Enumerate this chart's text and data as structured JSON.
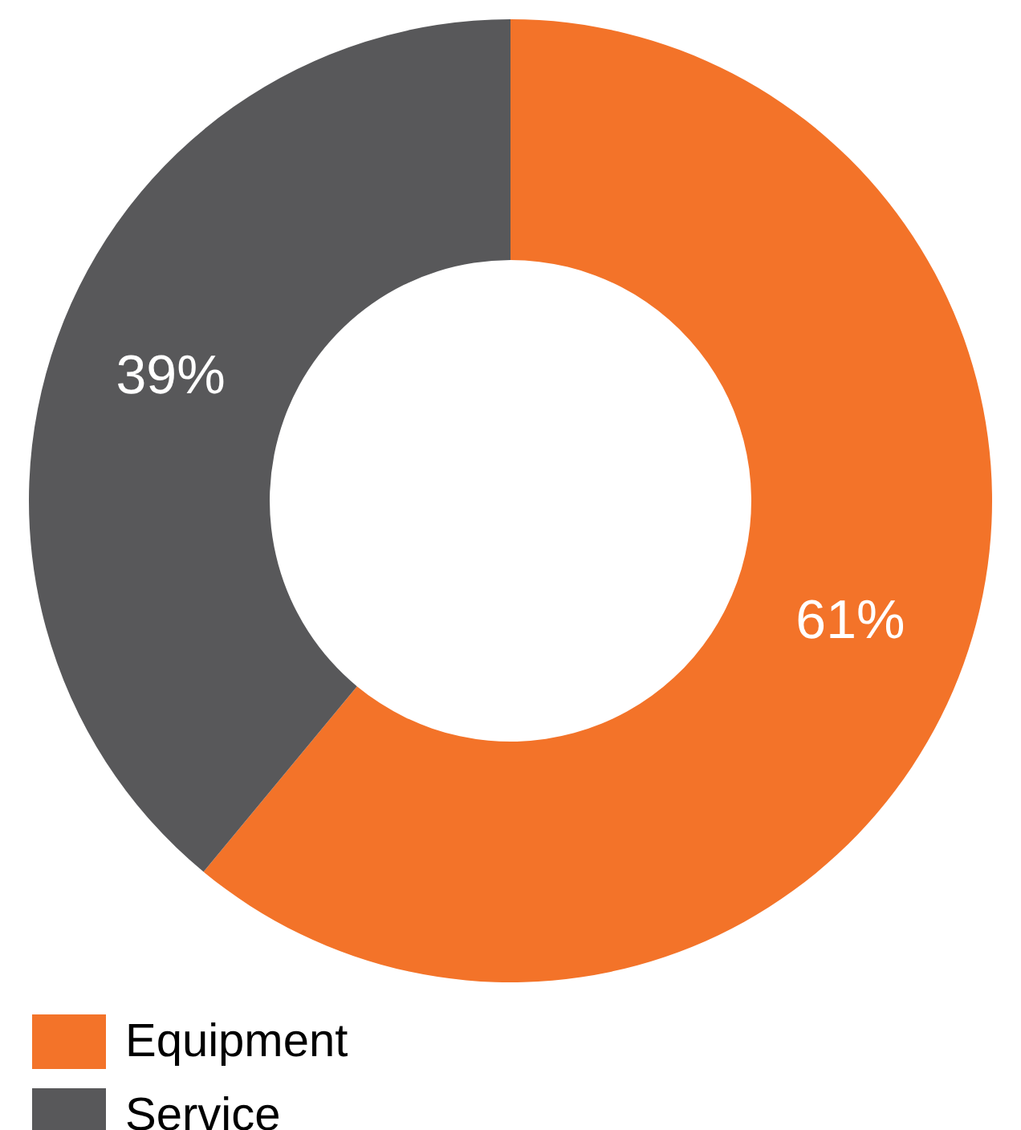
{
  "chart_data": {
    "type": "donut",
    "categories": [
      "Equipment",
      "Service"
    ],
    "values": [
      61,
      39
    ],
    "colors": [
      "#f37329",
      "#58585a"
    ],
    "value_labels": [
      "61%",
      "39%"
    ],
    "legend": "bottom left"
  }
}
